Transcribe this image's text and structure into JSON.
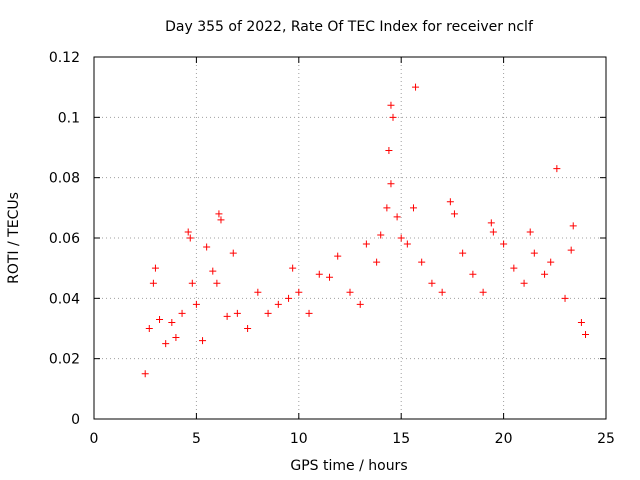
{
  "chart_data": {
    "type": "scatter",
    "title": "Day 355 of 2022, Rate Of TEC Index for receiver nclf",
    "xlabel": "GPS time / hours",
    "ylabel": "ROTI / TECUs",
    "xlim": [
      0,
      25
    ],
    "ylim": [
      0,
      0.12
    ],
    "x_ticks": [
      0,
      5,
      10,
      15,
      20,
      25
    ],
    "y_ticks": [
      0,
      0.02,
      0.04,
      0.06,
      0.08,
      0.1,
      0.12
    ],
    "x_tick_labels": [
      "0",
      "5",
      "10",
      "15",
      "20",
      "25"
    ],
    "y_tick_labels": [
      "0",
      "0.02",
      "0.04",
      "0.06",
      "0.08",
      "0.1",
      "0.12"
    ],
    "grid": true,
    "marker": "+",
    "color": "#ff0000",
    "series": [
      {
        "points": [
          [
            2.5,
            0.015
          ],
          [
            2.7,
            0.03
          ],
          [
            2.9,
            0.045
          ],
          [
            3.0,
            0.05
          ],
          [
            3.2,
            0.033
          ],
          [
            3.5,
            0.025
          ],
          [
            3.8,
            0.032
          ],
          [
            4.0,
            0.027
          ],
          [
            4.3,
            0.035
          ],
          [
            4.6,
            0.062
          ],
          [
            4.7,
            0.06
          ],
          [
            4.8,
            0.045
          ],
          [
            5.0,
            0.038
          ],
          [
            5.3,
            0.026
          ],
          [
            5.5,
            0.057
          ],
          [
            5.8,
            0.049
          ],
          [
            6.0,
            0.045
          ],
          [
            6.1,
            0.068
          ],
          [
            6.2,
            0.066
          ],
          [
            6.5,
            0.034
          ],
          [
            6.8,
            0.055
          ],
          [
            7.0,
            0.035
          ],
          [
            7.5,
            0.03
          ],
          [
            8.0,
            0.042
          ],
          [
            8.5,
            0.035
          ],
          [
            9.0,
            0.038
          ],
          [
            9.5,
            0.04
          ],
          [
            9.7,
            0.05
          ],
          [
            10.0,
            0.042
          ],
          [
            10.5,
            0.035
          ],
          [
            11.0,
            0.048
          ],
          [
            11.5,
            0.047
          ],
          [
            11.9,
            0.054
          ],
          [
            12.5,
            0.042
          ],
          [
            13.0,
            0.038
          ],
          [
            13.3,
            0.058
          ],
          [
            13.8,
            0.052
          ],
          [
            14.0,
            0.061
          ],
          [
            14.3,
            0.07
          ],
          [
            14.4,
            0.089
          ],
          [
            14.5,
            0.104
          ],
          [
            14.6,
            0.1
          ],
          [
            14.5,
            0.078
          ],
          [
            14.8,
            0.067
          ],
          [
            15.0,
            0.06
          ],
          [
            15.3,
            0.058
          ],
          [
            15.6,
            0.07
          ],
          [
            15.7,
            0.11
          ],
          [
            16.0,
            0.052
          ],
          [
            16.5,
            0.045
          ],
          [
            17.0,
            0.042
          ],
          [
            17.4,
            0.072
          ],
          [
            17.6,
            0.068
          ],
          [
            18.0,
            0.055
          ],
          [
            18.5,
            0.048
          ],
          [
            19.0,
            0.042
          ],
          [
            19.4,
            0.065
          ],
          [
            19.5,
            0.062
          ],
          [
            20.0,
            0.058
          ],
          [
            20.5,
            0.05
          ],
          [
            21.0,
            0.045
          ],
          [
            21.3,
            0.062
          ],
          [
            21.5,
            0.055
          ],
          [
            22.0,
            0.048
          ],
          [
            22.3,
            0.052
          ],
          [
            22.6,
            0.083
          ],
          [
            23.0,
            0.04
          ],
          [
            23.3,
            0.056
          ],
          [
            23.4,
            0.064
          ],
          [
            23.8,
            0.032
          ],
          [
            24.0,
            0.028
          ]
        ]
      }
    ]
  }
}
